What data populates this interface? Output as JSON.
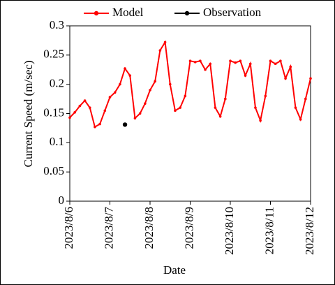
{
  "chart_data": {
    "type": "line",
    "xlabel": "Date",
    "ylabel": "Current Speed (m/sec)",
    "categories": [
      "2023/8/6",
      null,
      null,
      null,
      null,
      null,
      null,
      null,
      "2023/8/7",
      null,
      null,
      null,
      null,
      null,
      null,
      null,
      "2023/8/8",
      null,
      null,
      null,
      null,
      null,
      null,
      null,
      "2023/8/9",
      null,
      null,
      null,
      null,
      null,
      null,
      null,
      "2023/8/10",
      null,
      null,
      null,
      null,
      null,
      null,
      null,
      "2023/8/11",
      null,
      null,
      null,
      null,
      null,
      null,
      null,
      "2023/8/12"
    ],
    "series": [
      {
        "name": "Model",
        "color": "#ff0000",
        "values": [
          0.143,
          0.152,
          0.163,
          0.172,
          0.16,
          0.127,
          0.132,
          0.155,
          0.178,
          0.186,
          0.2,
          0.227,
          0.215,
          0.142,
          0.15,
          0.167,
          0.19,
          0.205,
          0.258,
          0.272,
          0.2,
          0.155,
          0.16,
          0.18,
          0.24,
          0.238,
          0.24,
          0.225,
          0.235,
          0.16,
          0.145,
          0.175,
          0.24,
          0.237,
          0.24,
          0.215,
          0.235,
          0.16,
          0.138,
          0.18,
          0.24,
          0.235,
          0.24,
          0.21,
          0.23,
          0.16,
          0.14,
          0.175,
          0.21
        ]
      },
      {
        "name": "Observation",
        "color": "#000000",
        "values": [
          null,
          null,
          null,
          null,
          null,
          null,
          null,
          null,
          null,
          null,
          null,
          0.131,
          null,
          null,
          null,
          null,
          null,
          null,
          null,
          null,
          null,
          null,
          null,
          null,
          null,
          null,
          null,
          null,
          null,
          null,
          null,
          null,
          null,
          null,
          null,
          null,
          null,
          null,
          null,
          null,
          null,
          null,
          null,
          null,
          null,
          null,
          null,
          null,
          null
        ]
      }
    ],
    "ylim": [
      0,
      0.3
    ],
    "yticks": [
      0,
      0.05,
      0.1,
      0.15,
      0.2,
      0.25,
      0.3
    ]
  }
}
